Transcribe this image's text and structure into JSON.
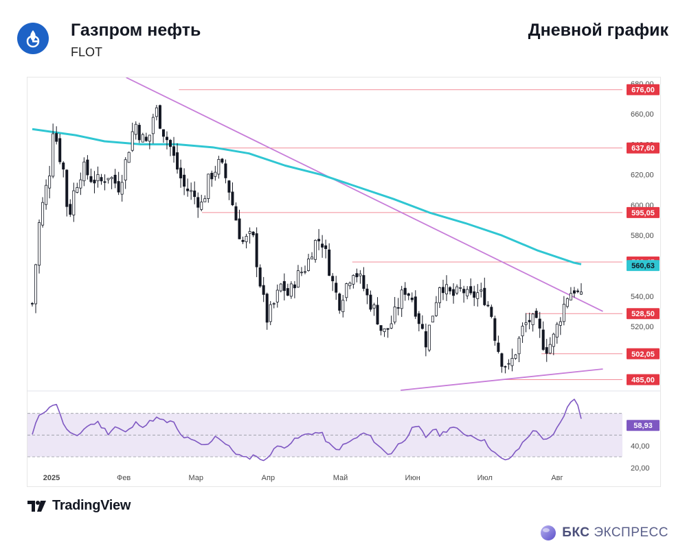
{
  "header": {
    "company": "Газпром нефть",
    "ticker": "FLOT",
    "chart_title": "Дневной график"
  },
  "footer": {
    "tradingview_label": "TradingView",
    "bks_brand": "БКС",
    "bks_suffix": "ЭКСПРЕСС"
  },
  "colors": {
    "up_candle": "#ffffff",
    "down_candle": "#131722",
    "moving_average": "#2fc6d2",
    "trendline": "#c77dd9",
    "level_line": "#f28b97",
    "level_label": "#e53744",
    "ma_label": "#2fc6d2",
    "rsi_line": "#7e57c2",
    "rsi_band": "#ede7f6"
  },
  "chart_data": {
    "type": "candlestick",
    "x_labels": [
      "2025",
      "Фев",
      "Мар",
      "Апр",
      "Май",
      "Июн",
      "Июл",
      "Авг"
    ],
    "y_ticks": [
      "680,00",
      "660,00",
      "640,00",
      "620,00",
      "600,00",
      "580,00",
      "540,00",
      "520,00"
    ],
    "ylim": [
      478,
      684
    ],
    "levels": [
      {
        "value": 676.0,
        "label": "676,00",
        "start_month": 2.03
      },
      {
        "value": 637.6,
        "label": "637,60",
        "start_month": 2.56
      },
      {
        "value": 595.05,
        "label": "595,05",
        "start_month": 2.35
      },
      {
        "value": 562.45,
        "label": "562,45",
        "start_month": 4.43
      },
      {
        "value": 528.5,
        "label": "528,50",
        "start_month": 6.84
      },
      {
        "value": 502.05,
        "label": "502,05",
        "start_month": 7.05
      },
      {
        "value": 485.0,
        "label": "485,00",
        "start_month": 6.55
      }
    ],
    "moving_average_last": {
      "value": 560.63,
      "label": "560,63"
    },
    "moving_average_path": [
      [
        0,
        650
      ],
      [
        0.6,
        646
      ],
      [
        1,
        642
      ],
      [
        1.5,
        640
      ],
      [
        2,
        640
      ],
      [
        2.5,
        638
      ],
      [
        3,
        634
      ],
      [
        3.5,
        626
      ],
      [
        4,
        620
      ],
      [
        4.5,
        612
      ],
      [
        5,
        604
      ],
      [
        5.5,
        595
      ],
      [
        6,
        588
      ],
      [
        6.5,
        580
      ],
      [
        7,
        570
      ],
      [
        7.5,
        562
      ],
      [
        7.6,
        561
      ]
    ],
    "trendlines": [
      {
        "name": "resistance",
        "points": [
          [
            1.3,
            684
          ],
          [
            7.9,
            530
          ]
        ]
      },
      {
        "name": "support",
        "points": [
          [
            5.1,
            478
          ],
          [
            7.9,
            492
          ]
        ]
      }
    ],
    "ohlc_anchors": [
      [
        0.0,
        535
      ],
      [
        0.1,
        590
      ],
      [
        0.25,
        625
      ],
      [
        0.3,
        660
      ],
      [
        0.35,
        635
      ],
      [
        0.42,
        628
      ],
      [
        0.5,
        590
      ],
      [
        0.58,
        610
      ],
      [
        0.7,
        625
      ],
      [
        0.8,
        618
      ],
      [
        0.95,
        615
      ],
      [
        1.05,
        620
      ],
      [
        1.2,
        612
      ],
      [
        1.3,
        630
      ],
      [
        1.42,
        655
      ],
      [
        1.5,
        645
      ],
      [
        1.6,
        640
      ],
      [
        1.7,
        665
      ],
      [
        1.8,
        650
      ],
      [
        1.9,
        640
      ],
      [
        2.0,
        625
      ],
      [
        2.1,
        612
      ],
      [
        2.2,
        608
      ],
      [
        2.35,
        600
      ],
      [
        2.45,
        618
      ],
      [
        2.6,
        628
      ],
      [
        2.7,
        615
      ],
      [
        2.8,
        595
      ],
      [
        2.9,
        575
      ],
      [
        3.05,
        580
      ],
      [
        3.15,
        550
      ],
      [
        3.25,
        525
      ],
      [
        3.35,
        535
      ],
      [
        3.45,
        548
      ],
      [
        3.55,
        540
      ],
      [
        3.65,
        552
      ],
      [
        3.8,
        560
      ],
      [
        3.9,
        575
      ],
      [
        4.0,
        578
      ],
      [
        4.08,
        565
      ],
      [
        4.15,
        550
      ],
      [
        4.25,
        535
      ],
      [
        4.35,
        548
      ],
      [
        4.45,
        558
      ],
      [
        4.55,
        550
      ],
      [
        4.65,
        538
      ],
      [
        4.75,
        530
      ],
      [
        4.85,
        515
      ],
      [
        4.95,
        520
      ],
      [
        5.05,
        532
      ],
      [
        5.15,
        545
      ],
      [
        5.25,
        540
      ],
      [
        5.35,
        525
      ],
      [
        5.45,
        510
      ],
      [
        5.55,
        530
      ],
      [
        5.65,
        550
      ],
      [
        5.75,
        542
      ],
      [
        5.85,
        540
      ],
      [
        5.95,
        545
      ],
      [
        6.05,
        538
      ],
      [
        6.15,
        542
      ],
      [
        6.25,
        540
      ],
      [
        6.35,
        530
      ],
      [
        6.42,
        510
      ],
      [
        6.5,
        498
      ],
      [
        6.6,
        492
      ],
      [
        6.7,
        505
      ],
      [
        6.8,
        520
      ],
      [
        6.9,
        525
      ],
      [
        7.0,
        520
      ],
      [
        7.1,
        505
      ],
      [
        7.2,
        510
      ],
      [
        7.3,
        525
      ],
      [
        7.4,
        540
      ],
      [
        7.5,
        545
      ],
      [
        7.6,
        538
      ]
    ],
    "rsi": {
      "last": {
        "value": 58.93,
        "label": "58,93"
      },
      "y_ticks": [
        "40,00",
        "20,00"
      ],
      "ylim": [
        18,
        90
      ],
      "band": [
        30,
        70
      ],
      "mid": 50,
      "anchors": [
        [
          0,
          50
        ],
        [
          0.1,
          70
        ],
        [
          0.25,
          75
        ],
        [
          0.32,
          82
        ],
        [
          0.4,
          65
        ],
        [
          0.5,
          52
        ],
        [
          0.6,
          48
        ],
        [
          0.75,
          58
        ],
        [
          0.9,
          62
        ],
        [
          1.05,
          52
        ],
        [
          1.15,
          58
        ],
        [
          1.3,
          52
        ],
        [
          1.45,
          62
        ],
        [
          1.55,
          58
        ],
        [
          1.7,
          66
        ],
        [
          1.85,
          62
        ],
        [
          1.95,
          62
        ],
        [
          2.05,
          50
        ],
        [
          2.2,
          45
        ],
        [
          2.4,
          40
        ],
        [
          2.55,
          50
        ],
        [
          2.7,
          40
        ],
        [
          2.85,
          32
        ],
        [
          2.95,
          28
        ],
        [
          3.1,
          32
        ],
        [
          3.2,
          25
        ],
        [
          3.35,
          38
        ],
        [
          3.5,
          40
        ],
        [
          3.7,
          48
        ],
        [
          3.85,
          52
        ],
        [
          4.0,
          52
        ],
        [
          4.1,
          42
        ],
        [
          4.2,
          36
        ],
        [
          4.35,
          42
        ],
        [
          4.5,
          48
        ],
        [
          4.6,
          52
        ],
        [
          4.72,
          46
        ],
        [
          4.85,
          36
        ],
        [
          4.95,
          32
        ],
        [
          5.05,
          40
        ],
        [
          5.15,
          46
        ],
        [
          5.25,
          55
        ],
        [
          5.35,
          57
        ],
        [
          5.45,
          48
        ],
        [
          5.55,
          56
        ],
        [
          5.65,
          50
        ],
        [
          5.8,
          58
        ],
        [
          5.95,
          52
        ],
        [
          6.05,
          50
        ],
        [
          6.15,
          48
        ],
        [
          6.25,
          45
        ],
        [
          6.35,
          38
        ],
        [
          6.45,
          30
        ],
        [
          6.55,
          26
        ],
        [
          6.7,
          34
        ],
        [
          6.8,
          44
        ],
        [
          6.9,
          52
        ],
        [
          7.0,
          54
        ],
        [
          7.1,
          44
        ],
        [
          7.2,
          48
        ],
        [
          7.3,
          60
        ],
        [
          7.4,
          74
        ],
        [
          7.5,
          84
        ],
        [
          7.55,
          80
        ],
        [
          7.6,
          64
        ]
      ]
    }
  }
}
